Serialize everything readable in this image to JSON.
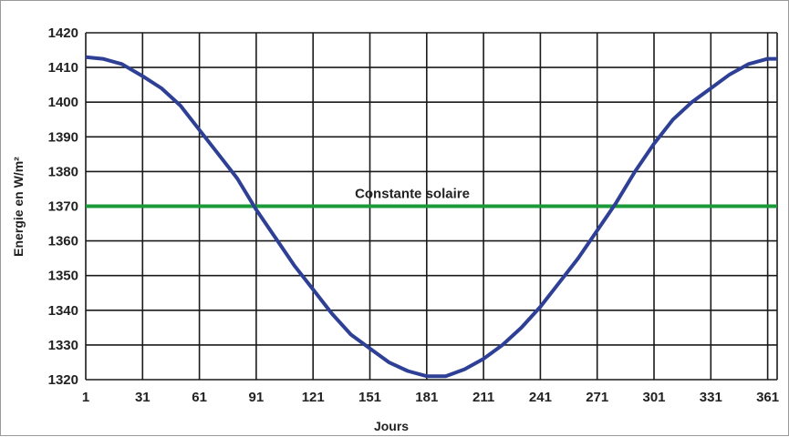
{
  "chart_data": {
    "type": "line",
    "title": "",
    "xlabel": "Jours",
    "ylabel": "Energie en W/m²",
    "xlim": [
      1,
      366
    ],
    "ylim": [
      1320,
      1420
    ],
    "x_ticks": [
      1,
      31,
      61,
      91,
      121,
      151,
      181,
      211,
      241,
      271,
      301,
      331,
      361
    ],
    "y_ticks": [
      1320,
      1330,
      1340,
      1350,
      1360,
      1370,
      1380,
      1390,
      1400,
      1410,
      1420
    ],
    "grid": true,
    "series": [
      {
        "name": "",
        "color": "#2e3f96",
        "x": [
          1,
          10,
          20,
          31,
          41,
          51,
          61,
          71,
          81,
          91,
          101,
          111,
          121,
          131,
          141,
          151,
          161,
          171,
          181,
          191,
          201,
          211,
          221,
          231,
          241,
          251,
          261,
          271,
          281,
          291,
          301,
          311,
          321,
          331,
          341,
          351,
          361,
          366
        ],
        "values": [
          1413,
          1412.5,
          1411,
          1407.5,
          1404,
          1399,
          1392,
          1385,
          1378,
          1369,
          1361,
          1353,
          1346,
          1339,
          1333,
          1329,
          1325,
          1322.5,
          1321,
          1321,
          1323,
          1326,
          1330,
          1335,
          1341,
          1348,
          1355,
          1363,
          1371,
          1380,
          1388,
          1395,
          1400,
          1404,
          1408,
          1411,
          1412.5,
          1412.5
        ]
      }
    ],
    "reference_line": {
      "y": 1370,
      "label": "Constante solaire",
      "color": "#1a9a38"
    }
  }
}
